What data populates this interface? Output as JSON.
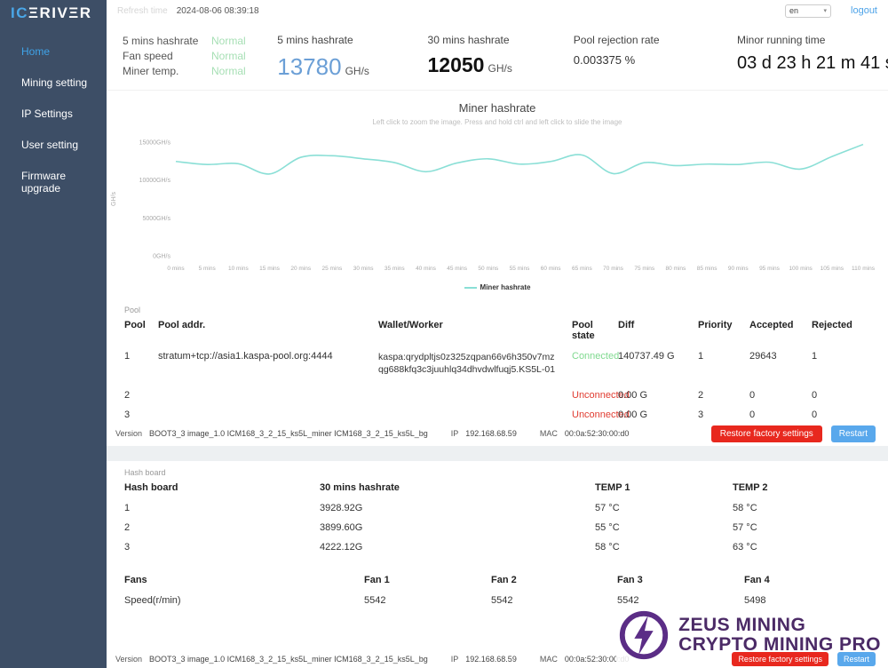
{
  "topbar": {
    "refresh_label": "Refresh time",
    "refresh_value": "2024-08-06 08:39:18",
    "language": "en",
    "logout_label": "logout"
  },
  "sidebar": {
    "logo_prefix": "IC",
    "logo_suffix": "ΞRIVΞR",
    "items": [
      {
        "label": "Home",
        "active": true
      },
      {
        "label": "Mining setting",
        "active": false
      },
      {
        "label": "IP Settings",
        "active": false
      },
      {
        "label": "User setting",
        "active": false
      },
      {
        "label": "Firmware upgrade",
        "active": false
      }
    ]
  },
  "stats": {
    "status_rows": [
      {
        "label": "5 mins hashrate",
        "value": "Normal"
      },
      {
        "label": "Fan speed",
        "value": "Normal"
      },
      {
        "label": "Miner temp.",
        "value": "Normal"
      }
    ],
    "hashrate_5m": {
      "label": "5 mins hashrate",
      "value": "13780",
      "unit": "GH/s"
    },
    "hashrate_30m": {
      "label": "30 mins hashrate",
      "value": "12050",
      "unit": "GH/s"
    },
    "rejection": {
      "label": "Pool rejection rate",
      "value": "0.003375 %"
    },
    "runtime": {
      "label": "Minor running time",
      "value": "03 d 23 h 21 m 41 s"
    }
  },
  "chart_data": {
    "type": "line",
    "title": "Miner hashrate",
    "subtitle": "Left click to zoom the image. Press and hold ctrl and left click to slide the image",
    "ylabel": "GH/s",
    "x_unit": "mins",
    "x": [
      0,
      5,
      10,
      15,
      20,
      25,
      30,
      35,
      40,
      45,
      50,
      55,
      60,
      65,
      70,
      75,
      80,
      85,
      90,
      95,
      100,
      105,
      110
    ],
    "series": [
      {
        "name": "Miner hashrate",
        "color": "#8adfd6",
        "values": [
          12450,
          12050,
          12150,
          10800,
          13000,
          13200,
          12800,
          12300,
          11100,
          12250,
          12800,
          12100,
          12450,
          13300,
          10850,
          12300,
          11900,
          12100,
          12050,
          12350,
          11450,
          13100,
          14700
        ]
      }
    ],
    "ylim": [
      0,
      15000
    ],
    "yticks": [
      0,
      5000,
      10000,
      15000
    ],
    "ytick_suffix": "GH/s",
    "legend_position": "bottom",
    "grid": false
  },
  "pool": {
    "section_label": "Pool",
    "headers": [
      "Pool",
      "Pool addr.",
      "Wallet/Worker",
      "Pool state",
      "Diff",
      "Priority",
      "Accepted",
      "Rejected"
    ],
    "rows": [
      {
        "pool": "1",
        "addr": "stratum+tcp://asia1.kaspa-pool.org:4444",
        "wallet": "kaspa:qrydpltjs0z325zqpan66v6h350v7mzqg688kfq3c3juuhlq34dhvdwlfuqj5.KS5L-01",
        "state": "Connected",
        "diff": "140737.49 G",
        "priority": "1",
        "accepted": "29643",
        "rejected": "1"
      },
      {
        "pool": "2",
        "addr": "",
        "wallet": "",
        "state": "Unconnected",
        "diff": "0.00 G",
        "priority": "2",
        "accepted": "0",
        "rejected": "0"
      },
      {
        "pool": "3",
        "addr": "",
        "wallet": "",
        "state": "Unconnected",
        "diff": "0.00 G",
        "priority": "3",
        "accepted": "0",
        "rejected": "0"
      }
    ]
  },
  "version_bar": {
    "version_label": "Version",
    "version_value": "BOOT3_3 image_1.0 ICM168_3_2_15_ks5L_miner ICM168_3_2_15_ks5L_bg",
    "ip_label": "IP",
    "ip_value": "192.168.68.59",
    "mac_label": "MAC",
    "mac_value": "00:0a:52:30:00:d0",
    "restore_label": "Restore factory settings",
    "restart_label": "Restart"
  },
  "hashboard": {
    "section_label": "Hash board",
    "headers": [
      "Hash board",
      "30 mins hashrate",
      "TEMP 1",
      "TEMP 2"
    ],
    "rows": [
      [
        "1",
        "3928.92G",
        "57 °C",
        "58 °C"
      ],
      [
        "2",
        "3899.60G",
        "55 °C",
        "57 °C"
      ],
      [
        "3",
        "4222.12G",
        "58 °C",
        "63 °C"
      ]
    ]
  },
  "fans": {
    "headers": [
      "Fans",
      "Fan 1",
      "Fan 2",
      "Fan 3",
      "Fan 4"
    ],
    "row_label": "Speed(r/min)",
    "values": [
      "5542",
      "5542",
      "5542",
      "5498"
    ]
  },
  "watermark": {
    "line1": "ZEUS MINING",
    "line2": "CRYPTO MINING PRO"
  },
  "colors": {
    "sidebar_bg": "#3d4e66",
    "accent_blue": "#4da3e8",
    "normal_green": "#a6dfb4",
    "connected_green": "#7fd98f",
    "error_red": "#e03c31",
    "value_blue": "#6b9fd6",
    "chart_line": "#8adfd6",
    "button_red": "#e8281e",
    "button_blue": "#59a8ec",
    "watermark_purple": "#4b2a66"
  }
}
